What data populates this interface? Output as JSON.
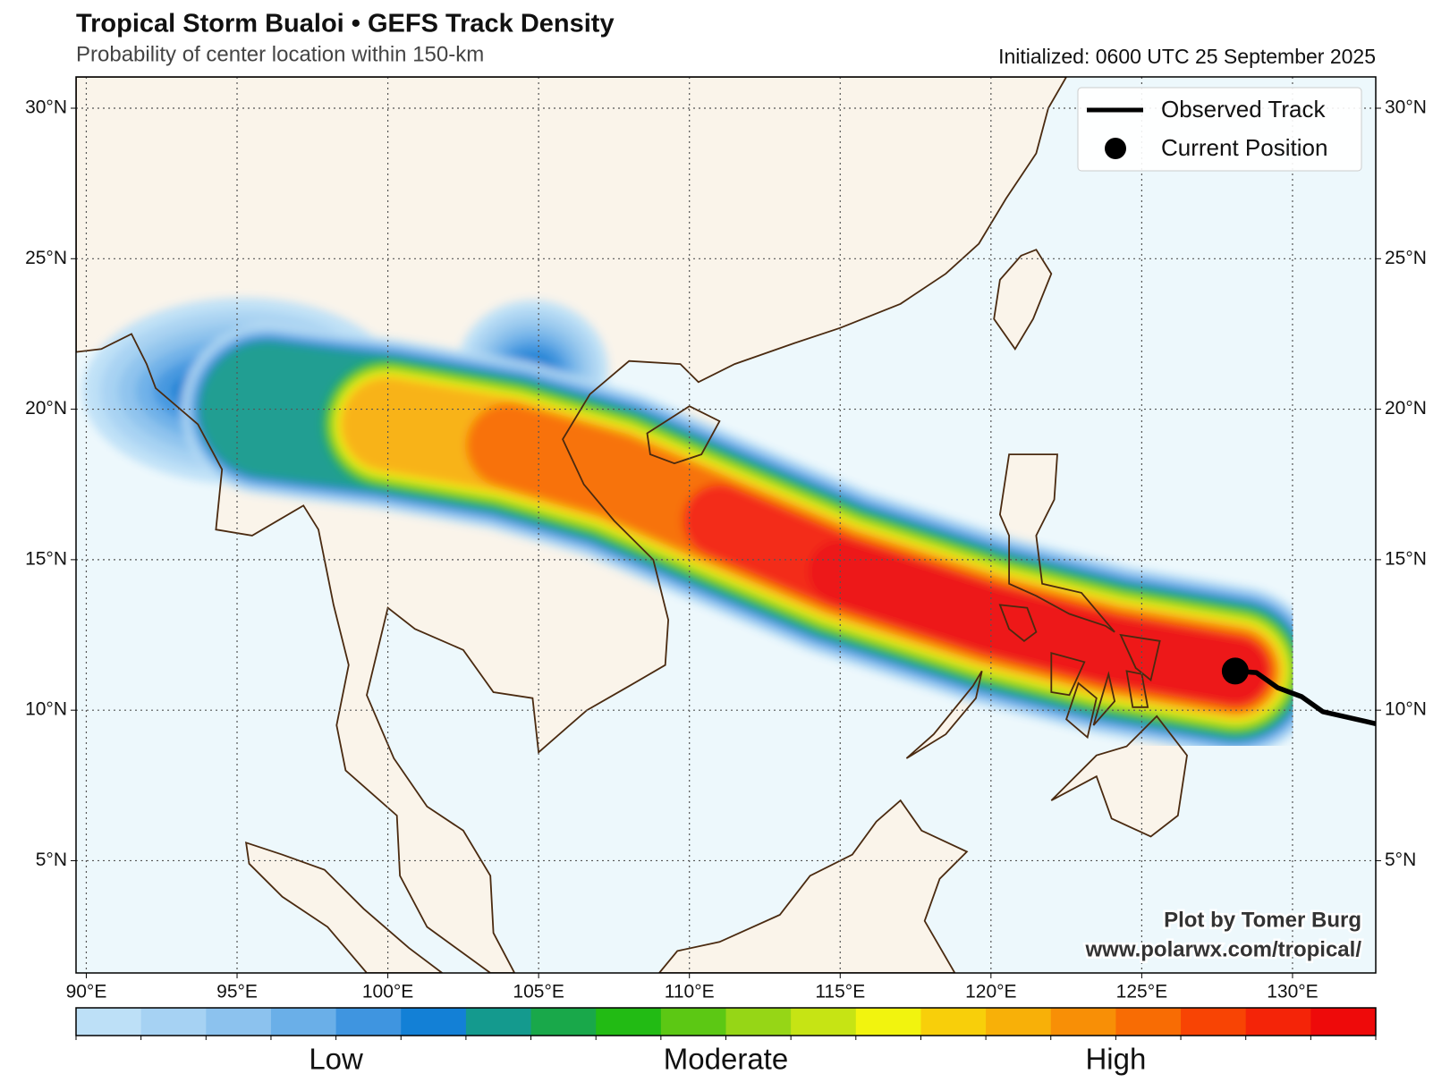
{
  "header": {
    "title": "Tropical Storm Bualoi • GEFS Track Density",
    "subtitle": "Probability of center location within 150-km",
    "initialized": "Initialized: 0600 UTC 25 September 2025"
  },
  "map": {
    "xlim": [
      89.66,
      132.76
    ],
    "ylim": [
      1.27,
      31.04
    ],
    "grid": true,
    "xticks": [
      {
        "value": 90,
        "label": "90°E"
      },
      {
        "value": 95,
        "label": "95°E"
      },
      {
        "value": 100,
        "label": "100°E"
      },
      {
        "value": 105,
        "label": "105°E"
      },
      {
        "value": 110,
        "label": "110°E"
      },
      {
        "value": 115,
        "label": "115°E"
      },
      {
        "value": 120,
        "label": "120°E"
      },
      {
        "value": 125,
        "label": "125°E"
      },
      {
        "value": 130,
        "label": "130°E"
      }
    ],
    "yticks": [
      {
        "value": 5,
        "label": "5°N"
      },
      {
        "value": 10,
        "label": "10°N"
      },
      {
        "value": 15,
        "label": "15°N"
      },
      {
        "value": 20,
        "label": "20°N"
      },
      {
        "value": 25,
        "label": "25°N"
      },
      {
        "value": 30,
        "label": "30°N"
      }
    ],
    "observed_track": {
      "name": "Observed Track",
      "color": "#000000",
      "lon": [
        128.1,
        128.8,
        129.5,
        130.3,
        131.0,
        132.76
      ],
      "lat": [
        11.3,
        11.25,
        10.75,
        10.45,
        9.95,
        9.55
      ]
    },
    "current_position": {
      "name": "Current Position",
      "color": "#000000",
      "lon": 128.1,
      "lat": 11.3
    }
  },
  "colorbar": {
    "colors": [
      "#bde0f7",
      "#a6d2f3",
      "#8cc2ee",
      "#6aafe8",
      "#3f95e0",
      "#1380d6",
      "#149a8e",
      "#19a84a",
      "#22bb14",
      "#5cc814",
      "#96d616",
      "#c6e414",
      "#f2f40e",
      "#f8cf0a",
      "#f8b008",
      "#f88f06",
      "#f86c04",
      "#f84404",
      "#f42408",
      "#ee0a0a"
    ],
    "labels": [
      "Low",
      "Moderate",
      "High"
    ]
  },
  "credit": {
    "line1": "Plot by Tomer Burg",
    "line2": "www.polarwx.com/tropical/"
  }
}
